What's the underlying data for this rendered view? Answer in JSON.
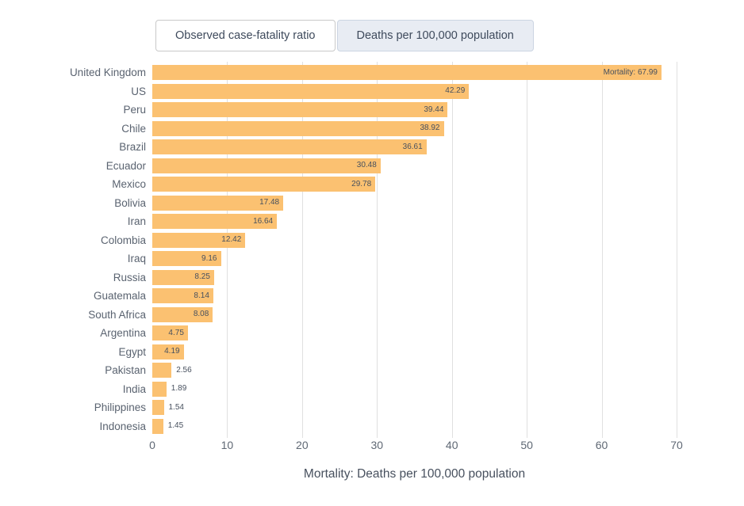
{
  "toolbar": {
    "buttons": [
      {
        "label": "Observed case-fatality ratio",
        "active": false
      },
      {
        "label": "Deaths per 100,000 population",
        "active": true
      }
    ],
    "active_bg": "#e8ecf3",
    "active_border": "#ccd5e2",
    "inactive_border": "#c9c9c9"
  },
  "chart_data": {
    "type": "bar",
    "orientation": "horizontal",
    "title": "",
    "xlabel": "Mortality: Deaths per 100,000 population",
    "ylabel": "",
    "xlim": [
      0,
      70
    ],
    "x_ticks": [
      0,
      10,
      20,
      30,
      40,
      50,
      60,
      70
    ],
    "grid": true,
    "categories": [
      "United Kingdom",
      "US",
      "Peru",
      "Chile",
      "Brazil",
      "Ecuador",
      "Mexico",
      "Bolivia",
      "Iran",
      "Colombia",
      "Iraq",
      "Russia",
      "Guatemala",
      "South Africa",
      "Argentina",
      "Egypt",
      "Pakistan",
      "India",
      "Philippines",
      "Indonesia"
    ],
    "values": [
      67.99,
      42.29,
      39.44,
      38.92,
      36.61,
      30.48,
      29.78,
      17.48,
      16.64,
      12.42,
      9.16,
      8.25,
      8.14,
      8.08,
      4.75,
      4.19,
      2.56,
      1.89,
      1.54,
      1.45
    ],
    "bar_labels": [
      "Mortality: 67.99",
      "42.29",
      "39.44",
      "38.92",
      "36.61",
      "30.48",
      "29.78",
      "17.48",
      "16.64",
      "12.42",
      "9.16",
      "8.25",
      "8.14",
      "8.08",
      "4.75",
      "4.19",
      "2.56",
      "1.89",
      "1.54",
      "1.45"
    ],
    "bar_color": "#fbc171",
    "grid_color": "#e0e0e0",
    "legend_position": "none"
  }
}
